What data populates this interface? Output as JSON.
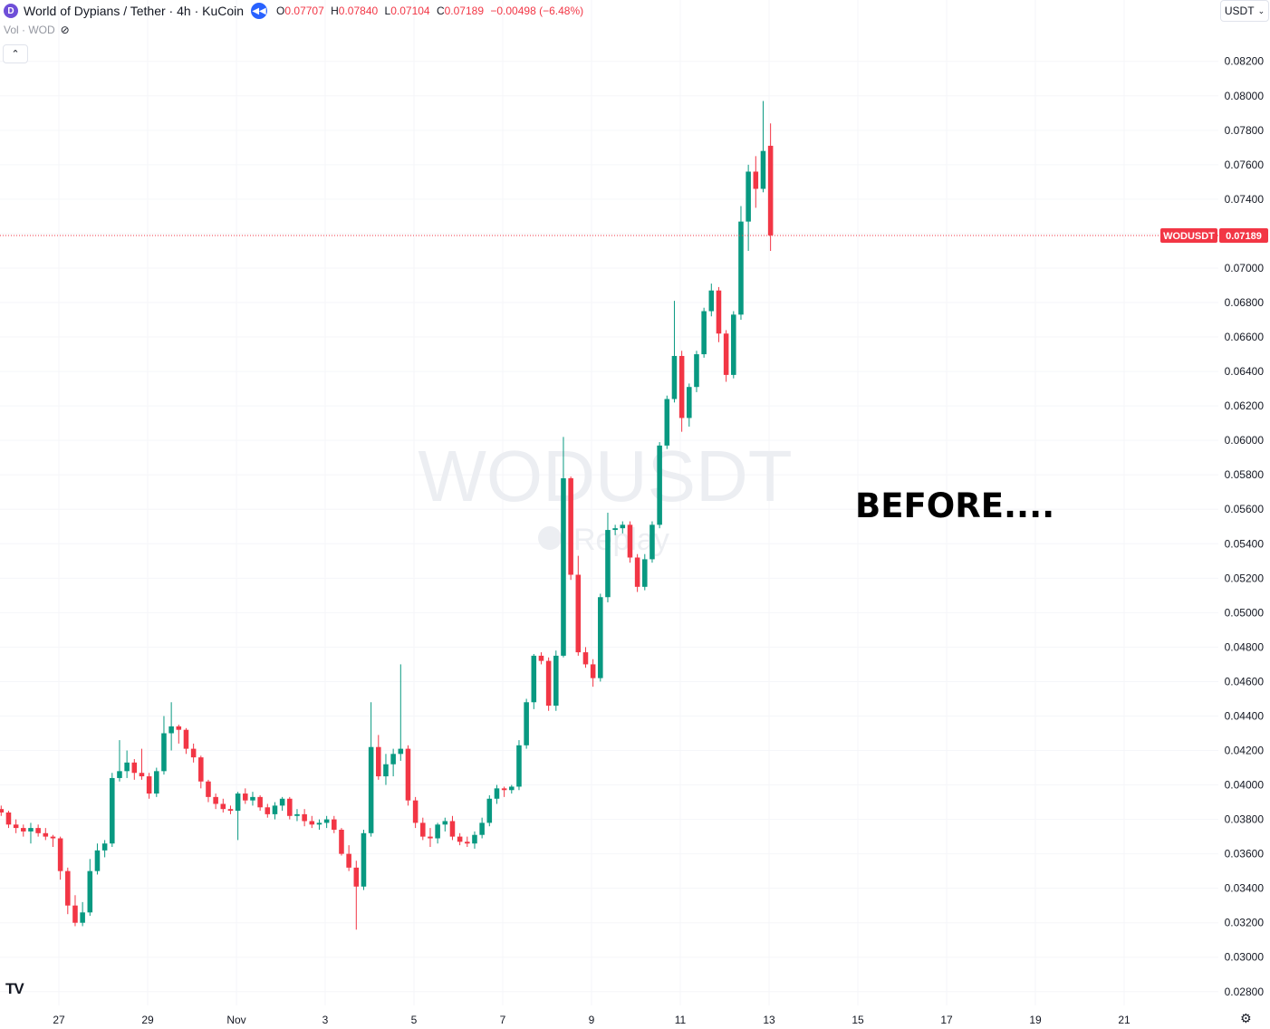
{
  "header": {
    "logo_letter": "D",
    "symbol_title": "World of Dypians / Tether · 4h · KuCoin",
    "replay_icon": "rewind-icon",
    "ohlc": [
      {
        "k": "O",
        "v": "0.07707"
      },
      {
        "k": "H",
        "v": "0.07840"
      },
      {
        "k": "L",
        "v": "0.07104"
      },
      {
        "k": "C",
        "v": "0.07189"
      }
    ],
    "change": "−0.00498 (−6.48%)"
  },
  "volume": {
    "label": "Vol · WOD",
    "icon": "eye-off-icon"
  },
  "collapse_icon": "chevron-up-icon",
  "currency": {
    "label": "USDT",
    "icon": "chevron-down-icon"
  },
  "watermark": {
    "symbol": "WODUSDT",
    "replay": "Replay",
    "replay_icon": "rewind-icon"
  },
  "annotation": "BEFORE....",
  "price_label": {
    "symbol": "WODUSDT",
    "price": "0.07189"
  },
  "tv_logo": "TV",
  "settings_icon": "gear-icon",
  "colors": {
    "up": "#089981",
    "down": "#f23645",
    "grid": "#f0f3fa",
    "text": "#131722"
  },
  "chart_data": {
    "type": "candlestick",
    "title": "World of Dypians / Tether · 4h · KuCoin",
    "interval": "4h",
    "ylim": [
      0.0272,
      0.0843
    ],
    "y_ticks": [
      "0.02800",
      "0.03000",
      "0.03200",
      "0.03400",
      "0.03600",
      "0.03800",
      "0.04000",
      "0.04200",
      "0.04400",
      "0.04600",
      "0.04800",
      "0.05000",
      "0.05200",
      "0.05400",
      "0.05600",
      "0.05800",
      "0.06000",
      "0.06200",
      "0.06400",
      "0.06600",
      "0.06800",
      "0.07000",
      "0.07200",
      "0.07400",
      "0.07600",
      "0.07800",
      "0.08000",
      "0.08200"
    ],
    "x_ticks": [
      {
        "label": "27",
        "day": 27.0
      },
      {
        "label": "29",
        "day": 29.0
      },
      {
        "label": "Nov",
        "day": 31.0
      },
      {
        "label": "3",
        "day": 33.0
      },
      {
        "label": "5",
        "day": 35.0
      },
      {
        "label": "7",
        "day": 37.0
      },
      {
        "label": "9",
        "day": 39.0
      },
      {
        "label": "11",
        "day": 41.0
      },
      {
        "label": "13",
        "day": 43.0
      },
      {
        "label": "15",
        "day": 45.0
      },
      {
        "label": "17",
        "day": 47.0
      },
      {
        "label": "19",
        "day": 49.0
      },
      {
        "label": "21",
        "day": 51.0
      }
    ],
    "first_candle_day": 25.7,
    "candles_per_day": 6,
    "last_price": 0.07189,
    "candles": [
      [
        0.0386,
        0.0388,
        0.0382,
        0.0384
      ],
      [
        0.0384,
        0.0385,
        0.0375,
        0.0377
      ],
      [
        0.0377,
        0.038,
        0.0372,
        0.0375
      ],
      [
        0.0375,
        0.0377,
        0.037,
        0.0373
      ],
      [
        0.0373,
        0.0378,
        0.0366,
        0.0375
      ],
      [
        0.0375,
        0.0377,
        0.037,
        0.0372
      ],
      [
        0.0372,
        0.0375,
        0.0368,
        0.037
      ],
      [
        0.037,
        0.0371,
        0.0364,
        0.0369
      ],
      [
        0.0369,
        0.037,
        0.0345,
        0.035
      ],
      [
        0.035,
        0.0352,
        0.0325,
        0.033
      ],
      [
        0.033,
        0.0336,
        0.0318,
        0.032
      ],
      [
        0.032,
        0.0332,
        0.0318,
        0.0326
      ],
      [
        0.0326,
        0.0357,
        0.0324,
        0.035
      ],
      [
        0.035,
        0.0366,
        0.0348,
        0.0362
      ],
      [
        0.0362,
        0.0368,
        0.0358,
        0.0366
      ],
      [
        0.0366,
        0.0407,
        0.0364,
        0.0404
      ],
      [
        0.0404,
        0.0426,
        0.0402,
        0.0408
      ],
      [
        0.0408,
        0.042,
        0.0404,
        0.0413
      ],
      [
        0.0413,
        0.0415,
        0.0403,
        0.0407
      ],
      [
        0.0407,
        0.0421,
        0.0403,
        0.0405
      ],
      [
        0.0405,
        0.0407,
        0.0392,
        0.0395
      ],
      [
        0.0395,
        0.041,
        0.0393,
        0.0408
      ],
      [
        0.0408,
        0.044,
        0.0406,
        0.043
      ],
      [
        0.043,
        0.0448,
        0.042,
        0.0434
      ],
      [
        0.0434,
        0.0435,
        0.0424,
        0.0432
      ],
      [
        0.0432,
        0.0433,
        0.0418,
        0.0421
      ],
      [
        0.0421,
        0.0424,
        0.0413,
        0.0416
      ],
      [
        0.0416,
        0.0417,
        0.0398,
        0.0402
      ],
      [
        0.0402,
        0.0403,
        0.039,
        0.0393
      ],
      [
        0.0393,
        0.0395,
        0.0386,
        0.0389
      ],
      [
        0.0389,
        0.0392,
        0.0384,
        0.0386
      ],
      [
        0.0386,
        0.0388,
        0.0383,
        0.0385
      ],
      [
        0.0385,
        0.0396,
        0.0368,
        0.0395
      ],
      [
        0.0395,
        0.0398,
        0.0389,
        0.0391
      ],
      [
        0.0391,
        0.0396,
        0.0388,
        0.0393
      ],
      [
        0.0393,
        0.0394,
        0.0385,
        0.0387
      ],
      [
        0.0387,
        0.0389,
        0.0381,
        0.0383
      ],
      [
        0.0383,
        0.039,
        0.038,
        0.0388
      ],
      [
        0.0388,
        0.0393,
        0.0385,
        0.0392
      ],
      [
        0.0392,
        0.0393,
        0.038,
        0.0382
      ],
      [
        0.0382,
        0.0386,
        0.0379,
        0.0383
      ],
      [
        0.0383,
        0.0386,
        0.0376,
        0.0379
      ],
      [
        0.0379,
        0.0382,
        0.0375,
        0.0377
      ],
      [
        0.0377,
        0.038,
        0.0374,
        0.0378
      ],
      [
        0.0378,
        0.0382,
        0.0375,
        0.038
      ],
      [
        0.038,
        0.0382,
        0.0372,
        0.0374
      ],
      [
        0.0374,
        0.0375,
        0.0359,
        0.036
      ],
      [
        0.036,
        0.0365,
        0.035,
        0.0352
      ],
      [
        0.0352,
        0.0356,
        0.0316,
        0.0341
      ],
      [
        0.0341,
        0.0374,
        0.0339,
        0.0372
      ],
      [
        0.0372,
        0.0448,
        0.037,
        0.0422
      ],
      [
        0.0422,
        0.0429,
        0.0403,
        0.0405
      ],
      [
        0.0405,
        0.0418,
        0.04,
        0.0412
      ],
      [
        0.0412,
        0.0421,
        0.0405,
        0.0418
      ],
      [
        0.0418,
        0.047,
        0.0414,
        0.0421
      ],
      [
        0.0421,
        0.0423,
        0.0388,
        0.0391
      ],
      [
        0.0391,
        0.0393,
        0.0375,
        0.0378
      ],
      [
        0.0378,
        0.0381,
        0.0368,
        0.037
      ],
      [
        0.037,
        0.0375,
        0.0364,
        0.0369
      ],
      [
        0.0369,
        0.0378,
        0.0366,
        0.0377
      ],
      [
        0.0377,
        0.0381,
        0.0373,
        0.0379
      ],
      [
        0.0379,
        0.0382,
        0.0368,
        0.037
      ],
      [
        0.037,
        0.0372,
        0.0365,
        0.0367
      ],
      [
        0.0367,
        0.037,
        0.0364,
        0.0366
      ],
      [
        0.0366,
        0.0373,
        0.0363,
        0.0371
      ],
      [
        0.0371,
        0.0381,
        0.0369,
        0.0378
      ],
      [
        0.0378,
        0.0394,
        0.0376,
        0.0392
      ],
      [
        0.0392,
        0.04,
        0.0389,
        0.0398
      ],
      [
        0.0398,
        0.0399,
        0.0393,
        0.0397
      ],
      [
        0.0397,
        0.04,
        0.0395,
        0.0399
      ],
      [
        0.0399,
        0.0426,
        0.0397,
        0.0423
      ],
      [
        0.0423,
        0.045,
        0.0421,
        0.0448
      ],
      [
        0.0448,
        0.0476,
        0.0444,
        0.0475
      ],
      [
        0.0475,
        0.0477,
        0.047,
        0.0472
      ],
      [
        0.0472,
        0.0474,
        0.0443,
        0.0446
      ],
      [
        0.0446,
        0.0478,
        0.0443,
        0.0475
      ],
      [
        0.0475,
        0.0602,
        0.0474,
        0.0578
      ],
      [
        0.0578,
        0.0579,
        0.0519,
        0.0522
      ],
      [
        0.0522,
        0.0533,
        0.0475,
        0.0477
      ],
      [
        0.0477,
        0.048,
        0.0468,
        0.047
      ],
      [
        0.047,
        0.0473,
        0.0457,
        0.0462
      ],
      [
        0.0462,
        0.0511,
        0.046,
        0.0509
      ],
      [
        0.0509,
        0.0558,
        0.0506,
        0.0548
      ],
      [
        0.0548,
        0.0551,
        0.0545,
        0.0549
      ],
      [
        0.0549,
        0.0553,
        0.0546,
        0.0551
      ],
      [
        0.0551,
        0.0553,
        0.0529,
        0.0532
      ],
      [
        0.0532,
        0.0534,
        0.0512,
        0.0515
      ],
      [
        0.0515,
        0.0534,
        0.0513,
        0.0531
      ],
      [
        0.0531,
        0.0553,
        0.0529,
        0.0551
      ],
      [
        0.0551,
        0.0599,
        0.0549,
        0.0597
      ],
      [
        0.0597,
        0.0626,
        0.0595,
        0.0624
      ],
      [
        0.0624,
        0.0681,
        0.0622,
        0.0649
      ],
      [
        0.0649,
        0.0652,
        0.0605,
        0.0613
      ],
      [
        0.0613,
        0.0633,
        0.0608,
        0.0631
      ],
      [
        0.0631,
        0.0652,
        0.0628,
        0.065
      ],
      [
        0.065,
        0.0677,
        0.0648,
        0.0675
      ],
      [
        0.0675,
        0.0691,
        0.0672,
        0.0687
      ],
      [
        0.0687,
        0.0689,
        0.0657,
        0.0662
      ],
      [
        0.0662,
        0.0664,
        0.0634,
        0.0638
      ],
      [
        0.0638,
        0.0675,
        0.0636,
        0.0673
      ],
      [
        0.0673,
        0.0736,
        0.067,
        0.0727
      ],
      [
        0.0727,
        0.076,
        0.071,
        0.0756
      ],
      [
        0.0756,
        0.0765,
        0.0735,
        0.0746
      ],
      [
        0.0746,
        0.0797,
        0.0744,
        0.0768
      ],
      [
        0.0771,
        0.0784,
        0.071,
        0.0719
      ]
    ]
  }
}
